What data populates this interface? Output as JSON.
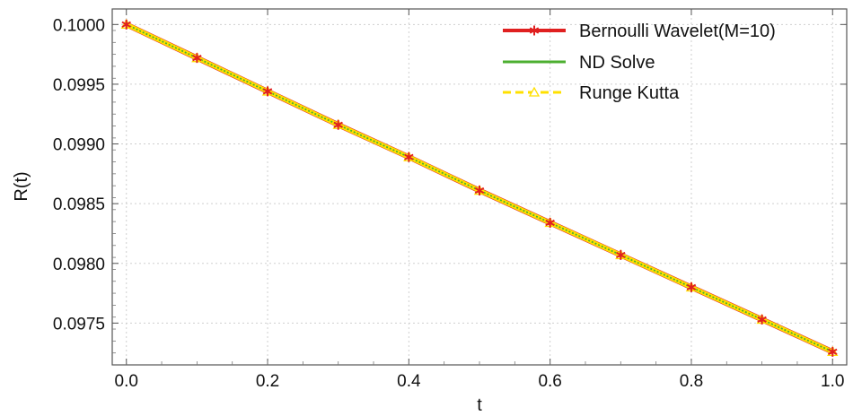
{
  "chart_data": {
    "type": "line",
    "xlabel": "t",
    "ylabel": "R(t)",
    "xlim": [
      -0.02,
      1.02
    ],
    "ylim": [
      0.09715,
      0.10013
    ],
    "x_ticks": [
      0.0,
      0.2,
      0.4,
      0.6,
      0.8,
      1.0
    ],
    "x_tick_labels": [
      "0.0",
      "0.2",
      "0.4",
      "0.6",
      "0.8",
      "1.0"
    ],
    "y_ticks": [
      0.0975,
      0.098,
      0.0985,
      0.099,
      0.0995,
      0.1
    ],
    "y_tick_labels": [
      "0.0975",
      "0.0980",
      "0.0985",
      "0.0990",
      "0.0995",
      "0.1000"
    ],
    "grid": true,
    "legend_position": "top-right",
    "x": [
      0.0,
      0.1,
      0.2,
      0.3,
      0.4,
      0.5,
      0.6,
      0.7,
      0.8,
      0.9,
      1.0
    ],
    "series": [
      {
        "name": "Bernoulli Wavelet(M=10)",
        "color": "#e02020",
        "marker": "star",
        "values": [
          0.1,
          0.09972,
          0.09944,
          0.09916,
          0.09889,
          0.09861,
          0.09834,
          0.09807,
          0.0978,
          0.09753,
          0.09726
        ]
      },
      {
        "name": "ND Solve",
        "color": "#4caf30",
        "marker": "none",
        "values": [
          0.1,
          0.09972,
          0.09944,
          0.09916,
          0.09889,
          0.09861,
          0.09834,
          0.09807,
          0.0978,
          0.09753,
          0.09726
        ]
      },
      {
        "name": "Runge Kutta",
        "color": "#ffe000",
        "marker": "triangle",
        "values": [
          0.1,
          0.09972,
          0.09944,
          0.09916,
          0.09889,
          0.09861,
          0.09834,
          0.09807,
          0.0978,
          0.09753,
          0.09726
        ]
      }
    ]
  }
}
